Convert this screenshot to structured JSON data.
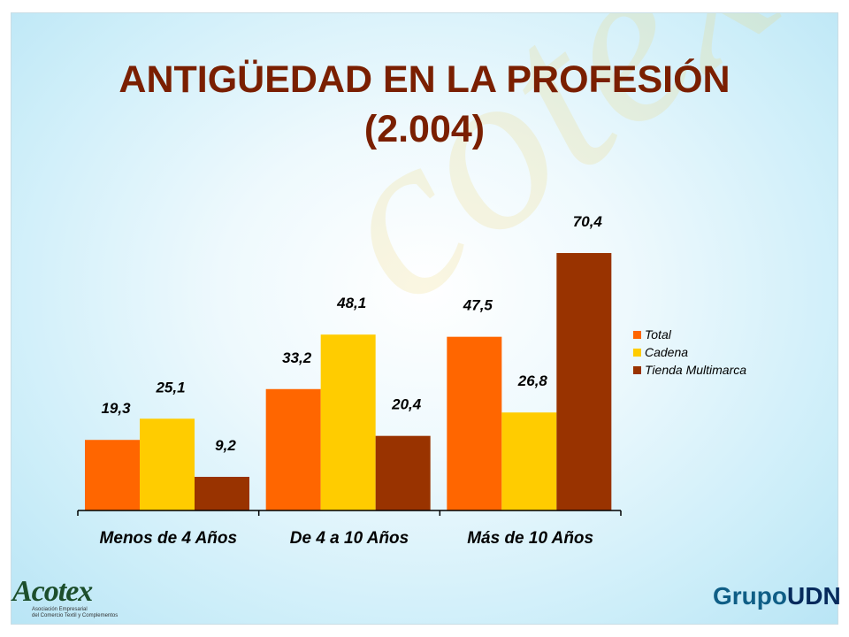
{
  "title_line1": "ANTIGÜEDAD EN LA PROFESIÓN",
  "title_line2": "(2.004)",
  "chart_data": {
    "type": "bar",
    "categories": [
      "Menos de 4 Años",
      "De 4 a 10 Años",
      "Más de 10 Años"
    ],
    "series": [
      {
        "name": "Total",
        "color": "#ff6600",
        "values": [
          19.3,
          33.2,
          47.5
        ],
        "labels": [
          "19,3",
          "33,2",
          "47,5"
        ]
      },
      {
        "name": "Cadena",
        "color": "#ffcc00",
        "values": [
          25.1,
          48.1,
          26.8
        ],
        "labels": [
          "25,1",
          "48,1",
          "26,8"
        ]
      },
      {
        "name": "Tienda Multimarca",
        "color": "#993300",
        "values": [
          9.2,
          20.4,
          70.4
        ],
        "labels": [
          "9,2",
          "20,4",
          "70,4"
        ]
      }
    ],
    "ylim": [
      0,
      90
    ],
    "grid": false,
    "legend_position": "right"
  },
  "logos": {
    "left_mark": "Acotex",
    "left_sub_1": "Asociación Empresarial",
    "left_sub_2": "del Comercio Textil y Complementos",
    "right_mark_a": "Grupo",
    "right_mark_b": "UDN"
  }
}
